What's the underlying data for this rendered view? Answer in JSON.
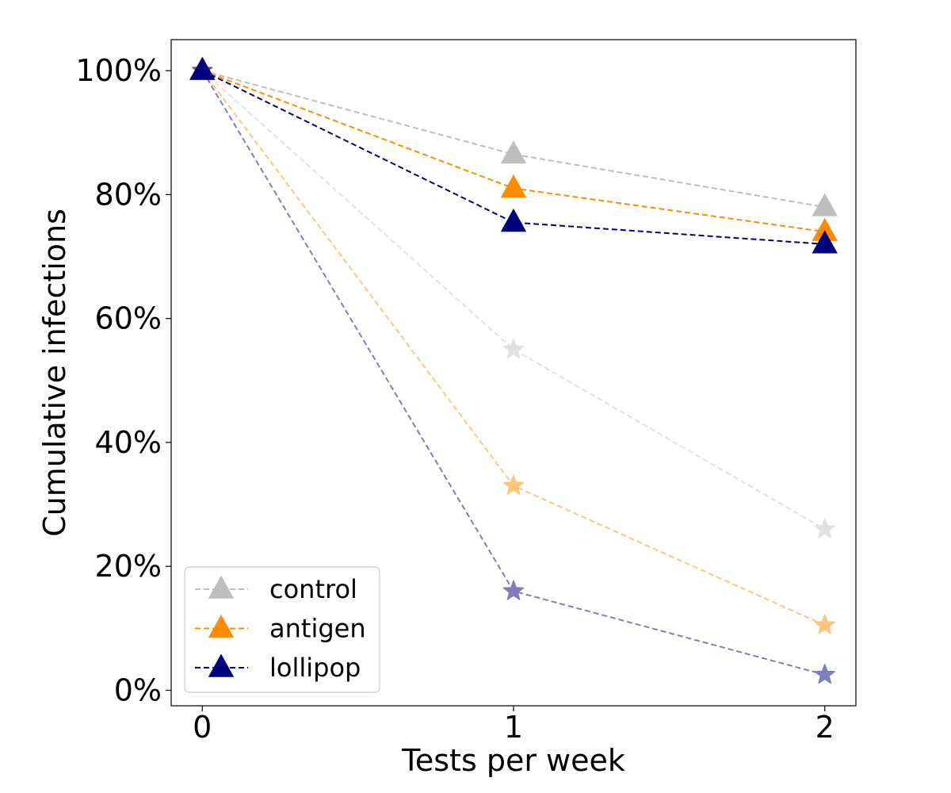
{
  "chart_data": {
    "type": "line",
    "title": "",
    "xlabel": "Tests per week",
    "ylabel": "Cumulative infections",
    "x": [
      0,
      1,
      2
    ],
    "xticks": [
      0,
      1,
      2
    ],
    "xtick_labels": [
      "0",
      "1",
      "2"
    ],
    "xlim": [
      -0.1,
      2.1
    ],
    "yticks": [
      0,
      20,
      40,
      60,
      80,
      100
    ],
    "ytick_labels": [
      "0%",
      "20%",
      "40%",
      "60%",
      "80%",
      "100%"
    ],
    "ylim": [
      -2.5,
      105
    ],
    "grid": false,
    "legend_position": "lower-left",
    "series": [
      {
        "name": "control",
        "marker": "triangle",
        "color": "#bebebe",
        "opacity": 1.0,
        "values": [
          100,
          86.5,
          78
        ]
      },
      {
        "name": "antigen",
        "marker": "triangle",
        "color": "#ff8c00",
        "opacity": 1.0,
        "values": [
          100,
          81,
          74
        ]
      },
      {
        "name": "lollipop",
        "marker": "triangle",
        "color": "#00007f",
        "opacity": 1.0,
        "values": [
          100,
          75.5,
          72
        ]
      },
      {
        "marker": "star",
        "color": "#bebebe",
        "opacity": 0.45,
        "values": [
          100,
          55,
          26
        ]
      },
      {
        "marker": "star",
        "color": "#ff8c00",
        "opacity": 0.5,
        "values": [
          100,
          33,
          10.5
        ]
      },
      {
        "marker": "star",
        "color": "#00007f",
        "opacity": 0.5,
        "values": [
          100,
          16,
          2.5
        ]
      }
    ]
  }
}
